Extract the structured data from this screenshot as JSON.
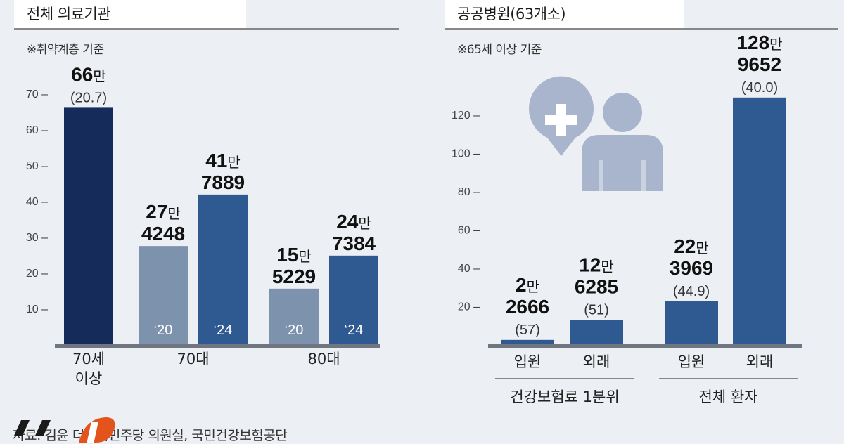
{
  "left": {
    "title": "전체 의료기관",
    "note": "※취약계층 기준"
  },
  "right": {
    "title": "공공병원(63개소)",
    "note": "※65세 이상 기준"
  },
  "source": "자료: 김윤 더불어민주당 의원실, 국민건강보험공단",
  "colors": {
    "dark_navy": "#152c5b",
    "blue": "#2f5991",
    "gray_blue": "#7d93ad",
    "axis_base": "#6f7680",
    "icon": "#a8b5cc",
    "logo_orange": "#e2541c"
  },
  "chart_data": [
    {
      "type": "bar",
      "ylim": [
        0,
        70
      ],
      "yticks": [
        "10",
        "20",
        "30",
        "40",
        "50",
        "60",
        "70"
      ],
      "ytick_values": [
        10,
        20,
        30,
        40,
        50,
        60,
        70
      ],
      "groups": [
        {
          "label_lines": [
            "70세",
            "이상"
          ],
          "bars": [
            {
              "value": 66,
              "label_lines": [
                {
                  "num": "66",
                  "unit": "만"
                }
              ],
              "paren": "(20.7)",
              "year": "",
              "color": "dark_navy"
            }
          ]
        },
        {
          "label_lines": [
            "70대"
          ],
          "bars": [
            {
              "value": 27.4248,
              "label_lines": [
                {
                  "num": "27",
                  "unit": "만"
                },
                {
                  "num": "4248",
                  "unit": ""
                }
              ],
              "paren": "",
              "year": "‘20",
              "color": "gray_blue"
            },
            {
              "value": 41.7889,
              "label_lines": [
                {
                  "num": "41",
                  "unit": "만"
                },
                {
                  "num": "7889",
                  "unit": ""
                }
              ],
              "paren": "",
              "year": "‘24",
              "color": "blue"
            }
          ]
        },
        {
          "label_lines": [
            "80대"
          ],
          "bars": [
            {
              "value": 15.5229,
              "label_lines": [
                {
                  "num": "15",
                  "unit": "만"
                },
                {
                  "num": "5229",
                  "unit": ""
                }
              ],
              "paren": "",
              "year": "‘20",
              "color": "gray_blue"
            },
            {
              "value": 24.7384,
              "label_lines": [
                {
                  "num": "24",
                  "unit": "만"
                },
                {
                  "num": "7384",
                  "unit": ""
                }
              ],
              "paren": "",
              "year": "‘24",
              "color": "blue"
            }
          ]
        }
      ]
    },
    {
      "type": "bar",
      "ylim": [
        0,
        130
      ],
      "yticks": [
        "20",
        "40",
        "60",
        "80",
        "100",
        "120"
      ],
      "ytick_values": [
        20,
        40,
        60,
        80,
        100,
        120
      ],
      "groups": [
        {
          "label": "건강보험료 1분위",
          "bars": [
            {
              "category": "입원",
              "value": 2.2666,
              "label_lines": [
                {
                  "num": "2",
                  "unit": "만"
                },
                {
                  "num": "2666",
                  "unit": ""
                }
              ],
              "paren": "(57)",
              "color": "blue"
            },
            {
              "category": "외래",
              "value": 12.6285,
              "label_lines": [
                {
                  "num": "12",
                  "unit": "만"
                },
                {
                  "num": "6285",
                  "unit": ""
                }
              ],
              "paren": "(51)",
              "color": "blue"
            }
          ]
        },
        {
          "label": "전체 환자",
          "bars": [
            {
              "category": "입원",
              "value": 22.3969,
              "label_lines": [
                {
                  "num": "22",
                  "unit": "만"
                },
                {
                  "num": "3969",
                  "unit": ""
                }
              ],
              "paren": "(44.9)",
              "color": "blue"
            },
            {
              "category": "외래",
              "value": 128.9652,
              "label_lines": [
                {
                  "num": "128",
                  "unit": "만"
                },
                {
                  "num": "9652",
                  "unit": ""
                }
              ],
              "paren": "(40.0)",
              "color": "blue"
            }
          ]
        }
      ]
    }
  ]
}
